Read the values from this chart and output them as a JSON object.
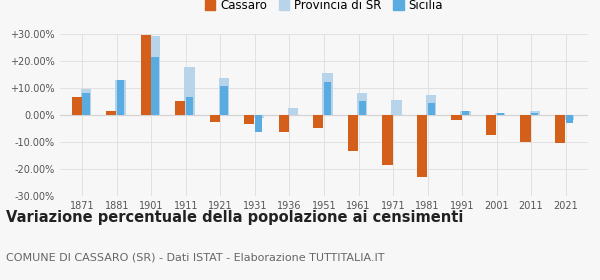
{
  "years": [
    1871,
    1881,
    1901,
    1911,
    1921,
    1931,
    1936,
    1951,
    1961,
    1971,
    1981,
    1991,
    2001,
    2011,
    2021
  ],
  "cassaro": [
    6.5,
    1.5,
    29.5,
    5.0,
    -2.5,
    -3.5,
    -6.5,
    -5.0,
    -13.5,
    -18.5,
    -23.0,
    -2.0,
    -7.5,
    -10.0,
    -10.5
  ],
  "provincia_sr": [
    9.5,
    13.0,
    29.0,
    17.5,
    13.5,
    -1.0,
    2.5,
    15.5,
    8.0,
    5.5,
    7.5,
    1.5,
    0.5,
    1.5,
    -2.0
  ],
  "sicilia": [
    8.0,
    13.0,
    21.5,
    6.5,
    10.5,
    -6.5,
    0.0,
    12.0,
    5.0,
    0.0,
    4.5,
    1.5,
    0.5,
    0.5,
    -3.0
  ],
  "cassaro_color": "#d45f1a",
  "provincia_color": "#b8d4ea",
  "sicilia_color": "#5aace0",
  "ylim": [
    -30,
    30
  ],
  "yticks": [
    -30,
    -20,
    -10,
    0,
    10,
    20,
    30
  ],
  "ytick_labels": [
    "-30.00%",
    "-20.00%",
    "-10.00%",
    "0.00%",
    "+10.00%",
    "+20.00%",
    "+30.00%"
  ],
  "title": "Variazione percentuale della popolazione ai censimenti",
  "subtitle": "COMUNE DI CASSARO (SR) - Dati ISTAT - Elaborazione TUTTITALIA.IT",
  "legend_labels": [
    "Cassaro",
    "Provincia di SR",
    "Sicilia"
  ],
  "bar_width": 0.3,
  "bg_color": "#f7f7f7",
  "grid_color": "#dddddd",
  "title_fontsize": 10.5,
  "subtitle_fontsize": 8.0
}
